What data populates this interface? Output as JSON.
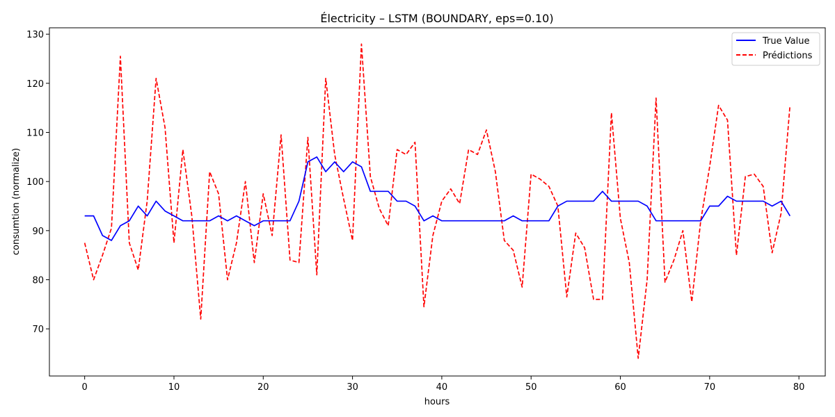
{
  "chart_data": {
    "type": "line",
    "title": "Électricity – LSTM (BOUNDARY, eps=0.10)",
    "xlabel": "hours",
    "ylabel": "consumtion (normalize)",
    "xlim": [
      -3.95,
      82.95
    ],
    "ylim": [
      60.4,
      131.3
    ],
    "xticks": [
      0,
      10,
      20,
      30,
      40,
      50,
      60,
      70,
      80
    ],
    "yticks": [
      70,
      80,
      90,
      100,
      110,
      120,
      130
    ],
    "grid": false,
    "legend": "top-right",
    "x": [
      0,
      1,
      2,
      3,
      4,
      5,
      6,
      7,
      8,
      9,
      10,
      11,
      12,
      13,
      14,
      15,
      16,
      17,
      18,
      19,
      20,
      21,
      22,
      23,
      24,
      25,
      26,
      27,
      28,
      29,
      30,
      31,
      32,
      33,
      34,
      35,
      36,
      37,
      38,
      39,
      40,
      41,
      42,
      43,
      44,
      45,
      46,
      47,
      48,
      49,
      50,
      51,
      52,
      53,
      54,
      55,
      56,
      57,
      58,
      59,
      60,
      61,
      62,
      63,
      64,
      65,
      66,
      67,
      68,
      69,
      70,
      71,
      72,
      73,
      74,
      75,
      76,
      77,
      78,
      79
    ],
    "series": [
      {
        "name": "True Value",
        "color": "#0000ff",
        "style": "solid",
        "values": [
          93,
          93,
          89,
          88,
          91,
          92,
          95,
          93,
          96,
          94,
          93,
          92,
          92,
          92,
          92,
          93,
          92,
          93,
          92,
          91,
          92,
          92,
          92,
          92,
          96,
          104,
          105,
          102,
          104,
          102,
          104,
          103,
          98,
          98,
          98,
          96,
          96,
          95,
          92,
          93,
          92,
          92,
          92,
          92,
          92,
          92,
          92,
          92,
          93,
          92,
          92,
          92,
          92,
          95,
          96,
          96,
          96,
          96,
          98,
          96,
          96,
          96,
          96,
          95,
          92,
          92,
          92,
          92,
          92,
          92,
          95,
          95,
          97,
          96,
          96,
          96,
          96,
          95,
          96,
          93
        ]
      },
      {
        "name": "Prédictions",
        "color": "#ff0000",
        "style": "dashed",
        "values": [
          87.5,
          80,
          85,
          90.5,
          125.5,
          87.5,
          82,
          96,
          121,
          111,
          87.5,
          106.5,
          93,
          72,
          102,
          97.5,
          80,
          87.5,
          100,
          83.5,
          97.5,
          89,
          109.5,
          84,
          83.5,
          109,
          81,
          121,
          105.5,
          96.5,
          88,
          128,
          101,
          94.5,
          91,
          106.5,
          105.5,
          108,
          74.5,
          89,
          96,
          98.5,
          95.5,
          106.5,
          105.5,
          110.5,
          102,
          88,
          86,
          78.5,
          101.5,
          100.5,
          99,
          95,
          76.5,
          89.5,
          86.5,
          76,
          76,
          114,
          92.5,
          83.5,
          64,
          80,
          117,
          79.5,
          84,
          90,
          75.5,
          92,
          103,
          115.5,
          112.5,
          85,
          101,
          101.5,
          99,
          85.5,
          93.5,
          115.5
        ]
      }
    ]
  }
}
